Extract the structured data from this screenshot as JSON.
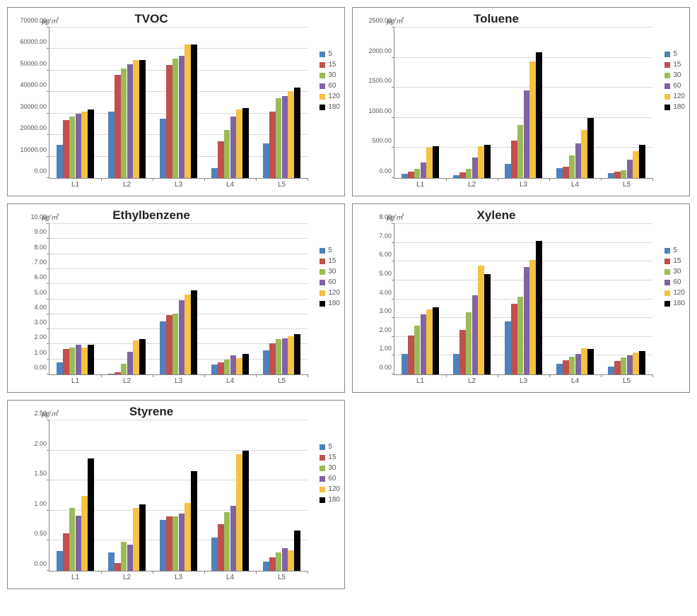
{
  "series_colors": {
    "5": "#4f81bd",
    "15": "#c0504d",
    "30": "#9bbb59",
    "60": "#8064a2",
    "120": "#f5c242",
    "180": "#000000"
  },
  "series_order": [
    "5",
    "15",
    "30",
    "60",
    "120",
    "180"
  ],
  "categories": [
    "L1",
    "L2",
    "L3",
    "L4",
    "L5"
  ],
  "ylabel": "㎍/㎥",
  "tick_color": "#888888",
  "grid_color": "#d9d9d9",
  "label_fontsize": 10,
  "title_fontsize": 17,
  "charts": [
    {
      "id": "tvoc",
      "title": "TVOC",
      "ymin": 0,
      "ymax": 70000,
      "ystep": 10000,
      "decimals": 2,
      "data": {
        "L1": {
          "5": 15500,
          "15": 27000,
          "30": 28500,
          "60": 30000,
          "120": 31000,
          "180": 32000
        },
        "L2": {
          "5": 31000,
          "15": 48000,
          "30": 51000,
          "60": 53000,
          "120": 55000,
          "180": 55000
        },
        "L3": {
          "5": 27500,
          "15": 52500,
          "30": 55500,
          "60": 57000,
          "120": 62000,
          "180": 62000
        },
        "L4": {
          "5": 4500,
          "15": 17000,
          "30": 22500,
          "60": 28500,
          "120": 32000,
          "180": 32500
        },
        "L5": {
          "5": 16000,
          "15": 31000,
          "30": 37000,
          "60": 38000,
          "120": 40500,
          "180": 42000
        }
      }
    },
    {
      "id": "toluene",
      "title": "Toluene",
      "ymin": 0,
      "ymax": 2500,
      "ystep": 500,
      "decimals": 2,
      "data": {
        "L1": {
          "5": 70,
          "15": 110,
          "30": 150,
          "60": 260,
          "120": 510,
          "180": 530
        },
        "L2": {
          "5": 50,
          "15": 90,
          "30": 150,
          "60": 340,
          "120": 530,
          "180": 550
        },
        "L3": {
          "5": 230,
          "15": 620,
          "30": 880,
          "60": 1460,
          "120": 1940,
          "180": 2090
        },
        "L4": {
          "5": 160,
          "15": 190,
          "30": 380,
          "60": 580,
          "120": 800,
          "180": 1000
        },
        "L5": {
          "5": 80,
          "15": 110,
          "30": 130,
          "60": 300,
          "120": 450,
          "180": 550
        }
      }
    },
    {
      "id": "ethylbenzene",
      "title": "Ethylbenzene",
      "ymin": 0,
      "ymax": 10,
      "ystep": 1,
      "decimals": 2,
      "data": {
        "L1": {
          "5": 0.8,
          "15": 1.7,
          "30": 1.8,
          "60": 1.95,
          "120": 1.8,
          "180": 1.95
        },
        "L2": {
          "5": 0.05,
          "15": 0.15,
          "30": 0.7,
          "60": 1.5,
          "120": 2.25,
          "180": 2.35
        },
        "L3": {
          "5": 3.5,
          "15": 3.95,
          "30": 4.05,
          "60": 4.95,
          "120": 5.3,
          "180": 5.6
        },
        "L4": {
          "5": 0.65,
          "15": 0.8,
          "30": 1.0,
          "60": 1.25,
          "120": 1.1,
          "180": 1.35
        },
        "L5": {
          "5": 1.6,
          "15": 2.05,
          "30": 2.35,
          "60": 2.4,
          "120": 2.55,
          "180": 2.7
        }
      }
    },
    {
      "id": "xylene",
      "title": "Xylene",
      "ymin": 0,
      "ymax": 8,
      "ystep": 1,
      "decimals": 2,
      "data": {
        "L1": {
          "5": 1.1,
          "15": 2.05,
          "30": 2.6,
          "60": 3.2,
          "120": 3.45,
          "180": 3.55
        },
        "L2": {
          "5": 1.1,
          "15": 2.35,
          "30": 3.3,
          "60": 4.2,
          "120": 5.8,
          "180": 5.35
        },
        "L3": {
          "5": 2.8,
          "15": 3.75,
          "30": 4.15,
          "60": 5.7,
          "120": 6.1,
          "180": 7.1
        },
        "L4": {
          "5": 0.55,
          "15": 0.75,
          "30": 0.95,
          "60": 1.1,
          "120": 1.4,
          "180": 1.35
        },
        "L5": {
          "5": 0.4,
          "15": 0.7,
          "30": 0.9,
          "60": 1.0,
          "120": 1.15,
          "180": 1.25
        }
      }
    },
    {
      "id": "styrene",
      "title": "Styrene",
      "ymin": 0,
      "ymax": 2.5,
      "ystep": 0.5,
      "decimals": 2,
      "data": {
        "L1": {
          "5": 0.33,
          "15": 0.62,
          "30": 1.05,
          "60": 0.92,
          "120": 1.24,
          "180": 1.87
        },
        "L2": {
          "5": 0.31,
          "15": 0.13,
          "30": 0.48,
          "60": 0.44,
          "120": 1.05,
          "180": 1.1
        },
        "L3": {
          "5": 0.85,
          "15": 0.9,
          "30": 0.9,
          "60": 0.95,
          "120": 1.13,
          "180": 1.65
        },
        "L4": {
          "5": 0.55,
          "15": 0.77,
          "30": 0.98,
          "60": 1.08,
          "120": 1.94,
          "180": 1.99
        },
        "L5": {
          "5": 0.15,
          "15": 0.22,
          "30": 0.3,
          "60": 0.37,
          "120": 0.34,
          "180": 0.67
        }
      }
    }
  ]
}
